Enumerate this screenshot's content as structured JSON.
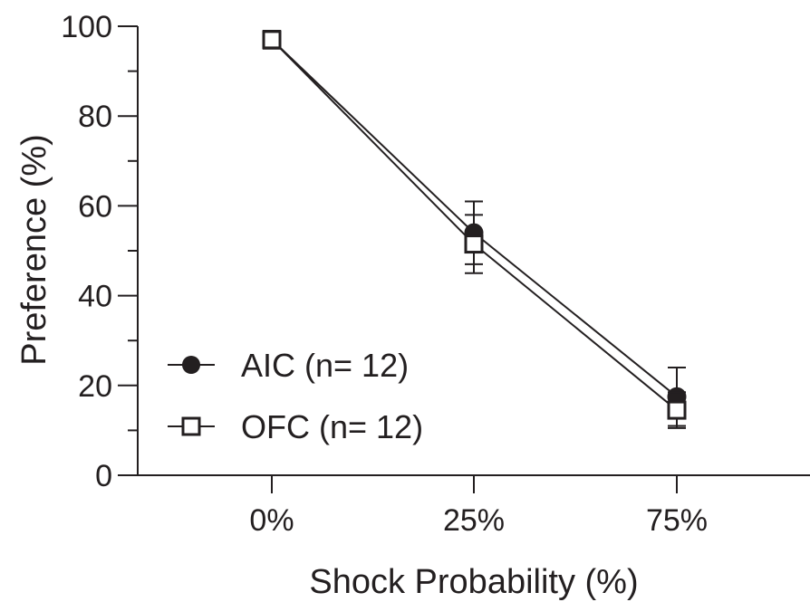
{
  "chart_data": {
    "type": "line",
    "categories": [
      "0%",
      "25%",
      "75%"
    ],
    "xlabel": "Shock Probability (%)",
    "ylabel": "Preference (%)",
    "ylim": [
      0,
      100
    ],
    "yticks": [
      0,
      20,
      40,
      60,
      80,
      100
    ],
    "series": [
      {
        "name": "AIC (n= 12)",
        "marker": "filled-circle",
        "values": [
          97,
          54,
          17.5
        ],
        "errors": [
          1.5,
          7,
          6.5
        ]
      },
      {
        "name": "OFC (n= 12)",
        "marker": "open-square",
        "values": [
          97,
          51.5,
          14.5
        ],
        "errors": [
          2,
          6.5,
          4
        ]
      }
    ],
    "legend": "bottom-left",
    "grid": false,
    "colors": {
      "ink": "#231f20",
      "marker_fill_open": "#ffffff"
    }
  }
}
